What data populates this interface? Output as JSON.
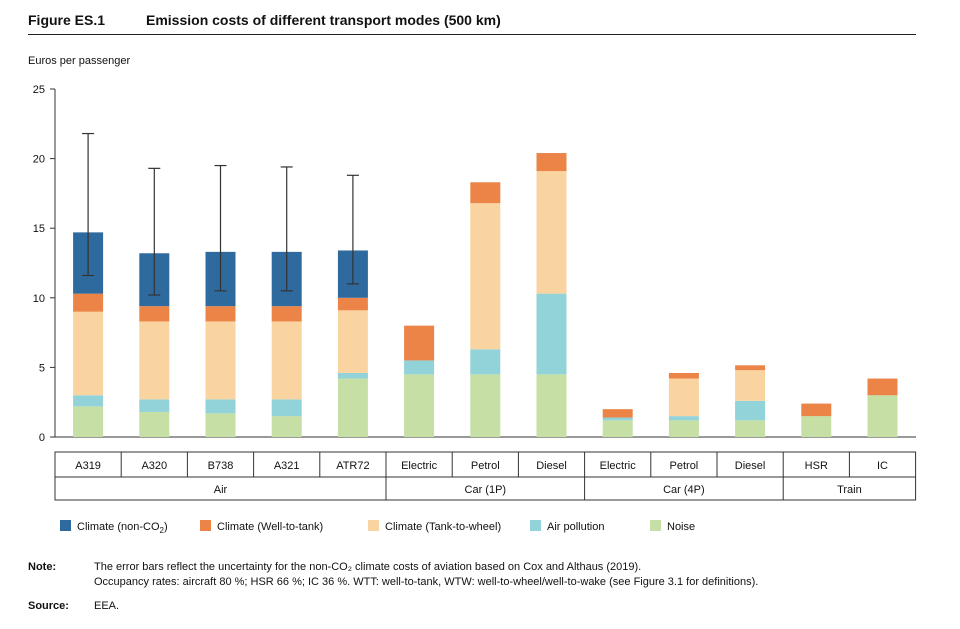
{
  "figure": {
    "number": "Figure ES.1",
    "title": "Emission costs of different transport modes (500 km)"
  },
  "chart_data": {
    "type": "bar",
    "stacked": true,
    "ylabel": "Euros per passenger",
    "ylim": [
      0,
      25
    ],
    "yticks": [
      0,
      5,
      10,
      15,
      20,
      25
    ],
    "grid": false,
    "legend_position": "bottom",
    "categories": [
      "A319",
      "A320",
      "B738",
      "A321",
      "ATR72",
      "Electric",
      "Petrol",
      "Diesel",
      "Electric",
      "Petrol",
      "Diesel",
      "HSR",
      "IC"
    ],
    "groups": [
      {
        "label": "Air",
        "count": 5
      },
      {
        "label": "Car (1P)",
        "count": 3
      },
      {
        "label": "Car (4P)",
        "count": 3
      },
      {
        "label": "Train",
        "count": 2
      }
    ],
    "series": [
      {
        "name": "Noise",
        "color": "#c5dfa4",
        "values": [
          2.2,
          1.8,
          1.7,
          1.5,
          4.2,
          4.5,
          4.5,
          4.5,
          1.2,
          1.2,
          1.2,
          1.5,
          3.0
        ]
      },
      {
        "name": "Air pollution",
        "color": "#92d2d9",
        "values": [
          0.8,
          0.9,
          1.0,
          1.2,
          0.4,
          1.0,
          1.8,
          5.8,
          0.2,
          0.3,
          1.4,
          0.0,
          0.0
        ]
      },
      {
        "name": "Climate (Tank-to-wheel)",
        "color": "#fad4a0",
        "values": [
          6.0,
          5.6,
          5.6,
          5.6,
          4.5,
          0.0,
          10.5,
          8.8,
          0.0,
          2.7,
          2.2,
          0.0,
          0.0
        ]
      },
      {
        "name": "Climate (Well-to-tank)",
        "color": "#ec8447",
        "values": [
          1.3,
          1.1,
          1.1,
          1.1,
          0.9,
          2.5,
          1.5,
          1.3,
          0.6,
          0.4,
          0.35,
          0.9,
          1.2
        ]
      },
      {
        "name": "Climate (non-CO2)",
        "color": "#2e6a9e",
        "values": [
          4.4,
          3.8,
          3.9,
          3.9,
          3.4,
          0,
          0,
          0,
          0,
          0,
          0,
          0,
          0
        ]
      }
    ],
    "error_bars": [
      {
        "category": "A319",
        "low": 11.6,
        "high": 21.8
      },
      {
        "category": "A320",
        "low": 10.2,
        "high": 19.3
      },
      {
        "category": "B738",
        "low": 10.5,
        "high": 19.5
      },
      {
        "category": "A321",
        "low": 10.5,
        "high": 19.4
      },
      {
        "category": "ATR72",
        "low": 11.0,
        "high": 18.8
      }
    ],
    "legend": [
      {
        "label": "Climate (non-CO",
        "sub": "2",
        "suffix": ")",
        "color": "#2e6a9e"
      },
      {
        "label": "Climate (Well-to-tank)",
        "sub": "",
        "suffix": "",
        "color": "#ec8447"
      },
      {
        "label": "Climate (Tank-to-wheel)",
        "sub": "",
        "suffix": "",
        "color": "#fad4a0"
      },
      {
        "label": "Air pollution",
        "sub": "",
        "suffix": "",
        "color": "#92d2d9"
      },
      {
        "label": "Noise",
        "sub": "",
        "suffix": "",
        "color": "#c5dfa4"
      }
    ]
  },
  "notes": {
    "note_label": "Note:",
    "note_line1": "The error bars reflect the uncertainty for the non-CO₂ climate costs of aviation based on Cox and Althaus (2019).",
    "note_line2": "Occupancy rates: aircraft 80 %; HSR 66 %; IC 36 %. WTT: well-to-tank, WTW: well-to-wheel/well-to-wake (see Figure 3.1 for definitions).",
    "source_label": "Source:",
    "source_text": "EEA."
  }
}
